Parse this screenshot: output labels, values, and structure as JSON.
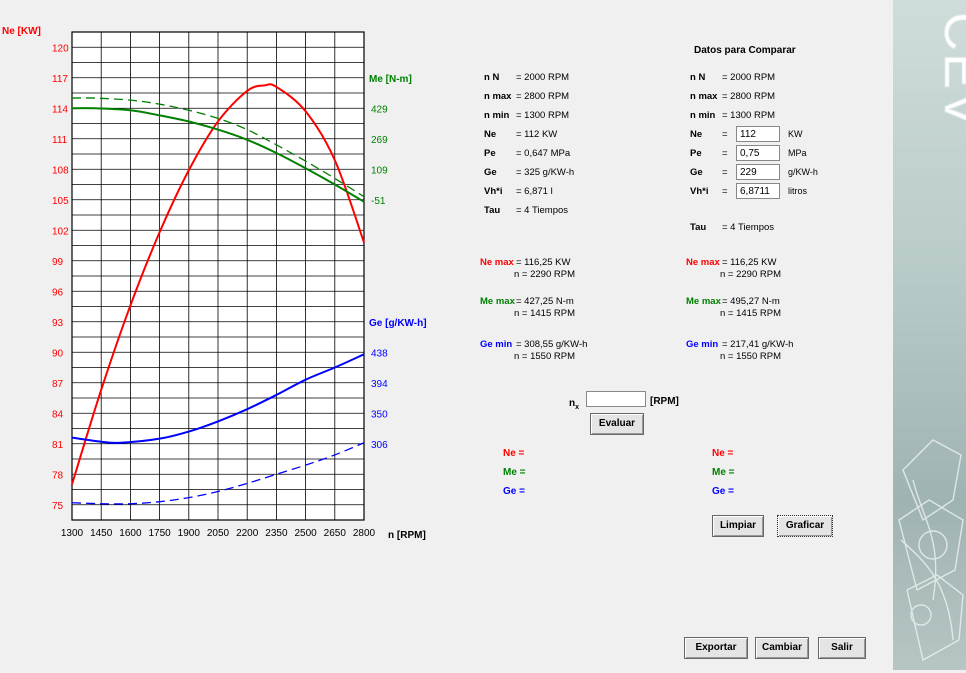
{
  "chart_data": {
    "type": "line",
    "x_label": "n [RPM]",
    "x_ticks": [
      1300,
      1450,
      1600,
      1750,
      1900,
      2050,
      2200,
      2350,
      2500,
      2650,
      2800
    ],
    "xlim": [
      1300,
      2800
    ],
    "left_axis": {
      "label": "Ne [KW]",
      "ticks": [
        120,
        117,
        114,
        111,
        108,
        105,
        102,
        99,
        96,
        93,
        90,
        87,
        84,
        81,
        78,
        75
      ],
      "ylim": [
        73.5,
        121.5
      ],
      "color": "#ff0000"
    },
    "me_axis": {
      "label": "Me [N-m]",
      "ticks": [
        "429",
        "269",
        "109",
        "-51"
      ],
      "color": "#008000"
    },
    "ge_axis": {
      "label": "Ge [g/KW-h]",
      "ticks": [
        "438",
        "394",
        "350",
        "306"
      ],
      "color": "#0000ff"
    },
    "series": [
      {
        "key": "ne",
        "color": "#ff0000",
        "dash": false,
        "x": [
          1300,
          1450,
          1600,
          1750,
          1900,
          2050,
          2200,
          2290,
          2350,
          2500,
          2650,
          2800
        ],
        "y": [
          77.0,
          86.3,
          94.6,
          101.8,
          107.9,
          112.7,
          115.7,
          116.25,
          116.1,
          113.7,
          108.9,
          100.8
        ]
      },
      {
        "key": "me",
        "color": "#008000",
        "dash": false,
        "x": [
          1300,
          1415,
          1600,
          1750,
          1900,
          2050,
          2200,
          2350,
          2500,
          2650,
          2800
        ],
        "y": [
          114.0,
          114.0,
          113.8,
          113.3,
          112.7,
          111.9,
          110.9,
          109.6,
          108.1,
          106.5,
          104.8
        ]
      },
      {
        "key": "me2",
        "color": "#008000",
        "dash": true,
        "x": [
          1300,
          1415,
          1600,
          1750,
          1900,
          2050,
          2200,
          2350,
          2500,
          2650,
          2800
        ],
        "y": [
          115.0,
          115.0,
          114.8,
          114.4,
          113.8,
          113.0,
          111.9,
          110.4,
          108.8,
          107.1,
          105.3
        ]
      },
      {
        "key": "ge",
        "color": "#0000ff",
        "dash": false,
        "x": [
          1300,
          1450,
          1550,
          1750,
          1900,
          2050,
          2200,
          2350,
          2500,
          2650,
          2800
        ],
        "y": [
          81.6,
          81.2,
          81.1,
          81.5,
          82.2,
          83.2,
          84.4,
          85.8,
          87.3,
          88.5,
          89.8
        ]
      },
      {
        "key": "ge2",
        "color": "#0000ff",
        "dash": true,
        "x": [
          1300,
          1450,
          1600,
          1750,
          1900,
          2050,
          2200,
          2350,
          2500,
          2650,
          2800
        ],
        "y": [
          75.2,
          75.1,
          75.1,
          75.3,
          75.7,
          76.3,
          77.1,
          78.0,
          78.9,
          79.9,
          81.1
        ]
      }
    ]
  },
  "left": {
    "rows": [
      {
        "k": "n N",
        "v": "= 2000 RPM"
      },
      {
        "k": "n max",
        "v": "= 2800 RPM"
      },
      {
        "k": "n min",
        "v": "= 1300 RPM"
      },
      {
        "k": "Ne",
        "v": "= 112 KW"
      },
      {
        "k": "Pe",
        "v": "= 0,647 MPa"
      },
      {
        "k": "Ge",
        "v": "= 325 g/KW-h"
      },
      {
        "k": "Vh*i",
        "v": "= 6,871 l"
      },
      {
        "k": "Tau",
        "v": "= 4 Tiempos"
      }
    ],
    "ne_max_label": "Ne max",
    "ne_max_val": "= 116,25 KW",
    "ne_max_n": "n = 2290 RPM",
    "me_max_label": "Me max",
    "me_max_val": "= 427,25 N-m",
    "me_max_n": "n = 1415 RPM",
    "ge_min_label": "Ge min",
    "ge_min_val": "= 308,55 g/KW-h",
    "ge_min_n": "n = 1550 RPM"
  },
  "right": {
    "title": "Datos para Comparar",
    "rows": [
      {
        "k": "n N",
        "v": "= 2000 RPM"
      },
      {
        "k": "n max",
        "v": "= 2800 RPM"
      },
      {
        "k": "n min",
        "v": "= 1300 RPM"
      }
    ],
    "inputs": [
      {
        "k": "Ne",
        "value": "112",
        "unit": "KW"
      },
      {
        "k": "Pe",
        "value": "0,75",
        "unit": "MPa"
      },
      {
        "k": "Ge",
        "value": "229",
        "unit": "g/KW-h"
      },
      {
        "k": "Vh*i",
        "value": "6,8711",
        "unit": "litros"
      }
    ],
    "tau": {
      "k": "Tau",
      "v": "= 4 Tiempos"
    },
    "ne_max_label": "Ne max",
    "ne_max_val": "= 116,25 KW",
    "ne_max_n": "n = 2290 RPM",
    "me_max_label": "Me max",
    "me_max_val": "= 495,27 N-m",
    "me_max_n": "n = 1415 RPM",
    "ge_min_label": "Ge min",
    "ge_min_val": "= 217,41 g/KW-h",
    "ge_min_n": "n = 1550 RPM"
  },
  "evaluate": {
    "nx_label": "n",
    "nx_sub": "x",
    "nx_value": "",
    "unit": "[RPM]",
    "button": "Evaluar",
    "ne": "Ne =",
    "me": "Me =",
    "ge": "Ge ="
  },
  "buttons": {
    "limpiar": "Limpiar",
    "graficar": "Graficar",
    "exportar": "Exportar",
    "cambiar": "Cambiar",
    "salir": "Salir"
  },
  "colors": {
    "ne": "#ff0000",
    "me": "#008000",
    "ge": "#0000ff"
  },
  "logo": {
    "text": "CEV"
  }
}
